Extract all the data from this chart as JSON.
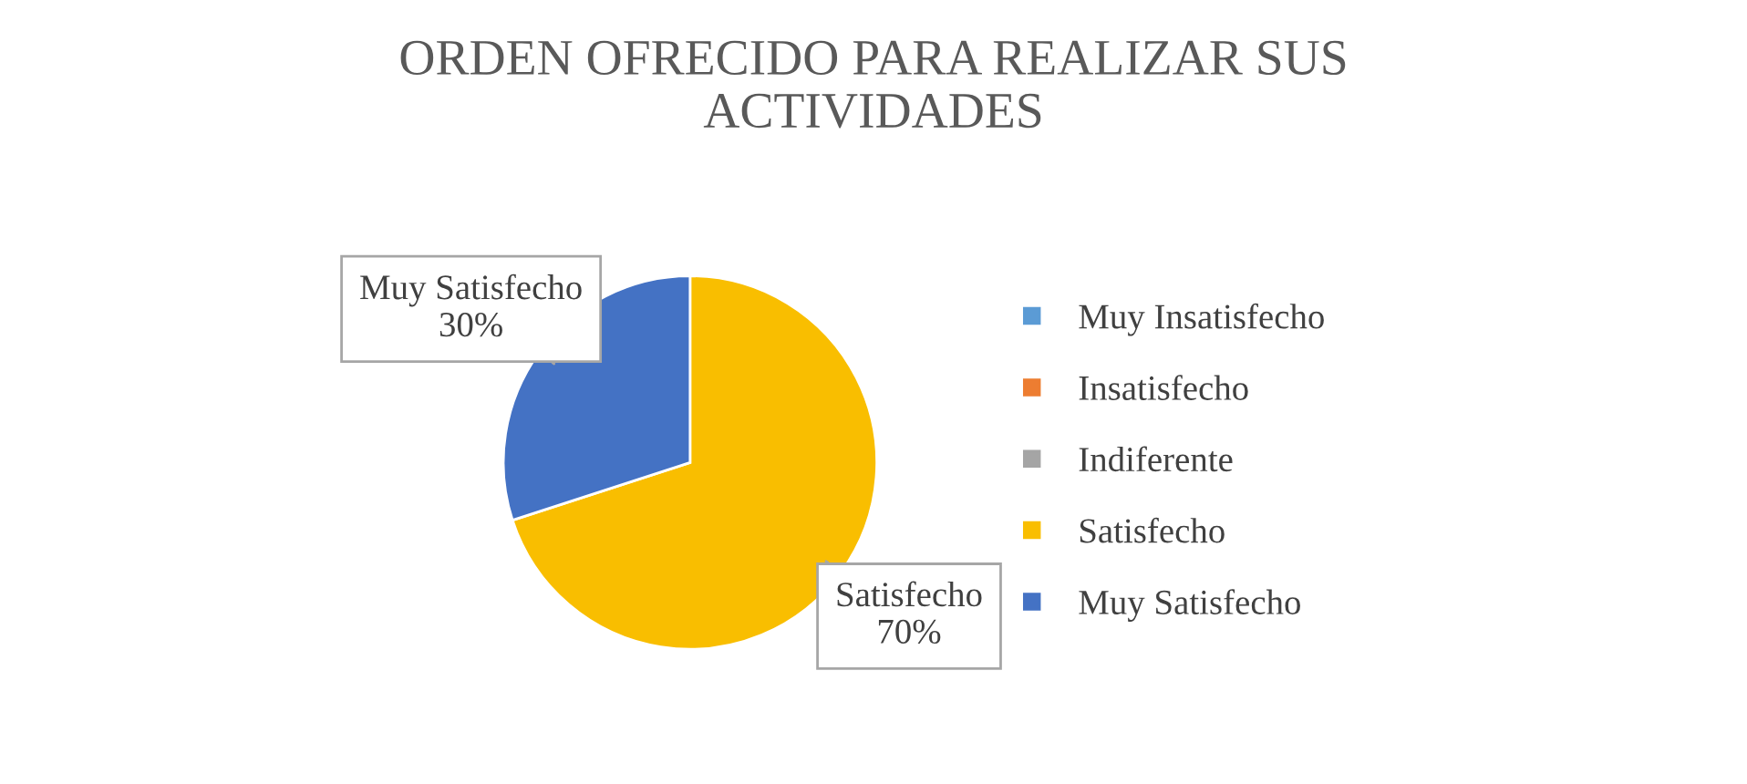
{
  "chart_data": {
    "type": "pie",
    "title": "ORDEN OFRECIDO PARA REALIZAR SUS\nACTIVIDADES",
    "categories": [
      "Muy Insatisfecho",
      "Insatisfecho",
      "Indiferente",
      "Satisfecho",
      "Muy Satisfecho"
    ],
    "values": [
      0,
      0,
      0,
      70,
      30
    ],
    "colors": [
      "#5b9bd5",
      "#ed7d31",
      "#a5a5a5",
      "#f9be00",
      "#4472c4"
    ],
    "value_labels": [
      null,
      null,
      null,
      "70%",
      "30%"
    ],
    "legend": "right"
  }
}
